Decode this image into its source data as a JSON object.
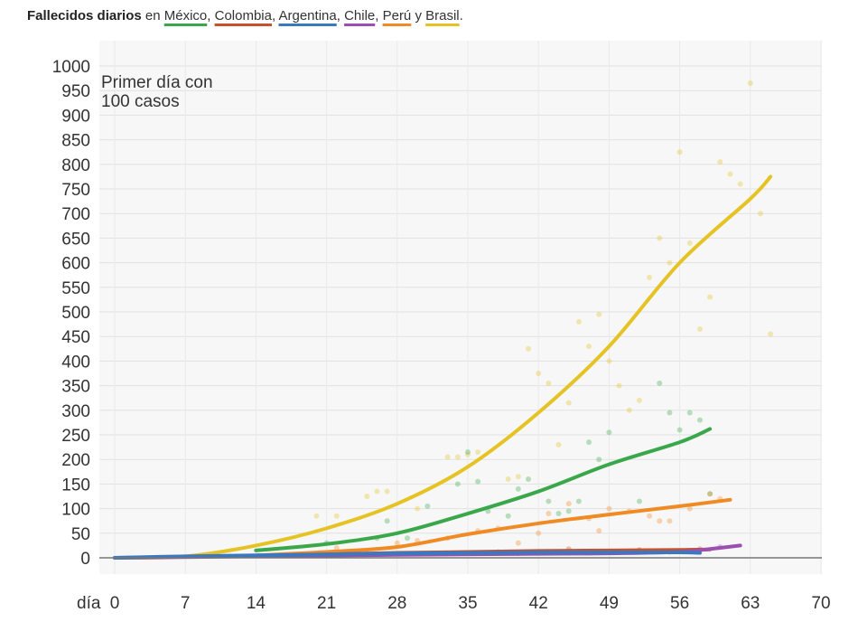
{
  "title": {
    "lead": "Fallecidos diarios",
    "connector": "en",
    "countries": [
      {
        "name": "México",
        "color": "#3aa84a"
      },
      {
        "name": "Colombia",
        "color": "#c8502a"
      },
      {
        "name": "Argentina",
        "color": "#3a78c0"
      },
      {
        "name": "Chile",
        "color": "#9b4fb0"
      },
      {
        "name": "Perú",
        "color": "#f08a24"
      },
      {
        "name": "Brasil",
        "color": "#e6c325"
      }
    ],
    "separators": [
      ", ",
      ", ",
      ", ",
      ", ",
      " y ",
      "."
    ]
  },
  "chart_data": {
    "type": "line",
    "annotation": "Primer día con 100 casos",
    "xlabel_prefix": "día",
    "xticks": [
      0,
      7,
      14,
      21,
      28,
      35,
      42,
      49,
      56,
      63,
      70
    ],
    "yticks": [
      0,
      50,
      100,
      150,
      200,
      250,
      300,
      350,
      400,
      450,
      500,
      550,
      600,
      650,
      700,
      750,
      800,
      850,
      900,
      950,
      1000
    ],
    "xlim": [
      0,
      70
    ],
    "ylim": [
      0,
      1000
    ],
    "grid": true,
    "series": [
      {
        "name": "Brasil",
        "color": "#e6c325",
        "trend": [
          [
            0,
            0
          ],
          [
            7,
            3
          ],
          [
            14,
            25
          ],
          [
            21,
            60
          ],
          [
            28,
            110
          ],
          [
            35,
            185
          ],
          [
            42,
            295
          ],
          [
            49,
            430
          ],
          [
            56,
            600
          ],
          [
            63,
            730
          ],
          [
            65,
            775
          ]
        ],
        "points": [
          [
            20,
            85
          ],
          [
            22,
            85
          ],
          [
            25,
            125
          ],
          [
            26,
            135
          ],
          [
            27,
            135
          ],
          [
            30,
            100
          ],
          [
            33,
            205
          ],
          [
            34,
            205
          ],
          [
            35,
            210
          ],
          [
            36,
            215
          ],
          [
            39,
            160
          ],
          [
            40,
            165
          ],
          [
            41,
            425
          ],
          [
            42,
            375
          ],
          [
            43,
            355
          ],
          [
            44,
            230
          ],
          [
            45,
            315
          ],
          [
            46,
            480
          ],
          [
            47,
            430
          ],
          [
            48,
            495
          ],
          [
            49,
            400
          ],
          [
            50,
            350
          ],
          [
            51,
            300
          ],
          [
            52,
            320
          ],
          [
            53,
            570
          ],
          [
            54,
            650
          ],
          [
            55,
            600
          ],
          [
            56,
            825
          ],
          [
            57,
            640
          ],
          [
            58,
            465
          ],
          [
            59,
            530
          ],
          [
            60,
            805
          ],
          [
            61,
            780
          ],
          [
            62,
            760
          ],
          [
            63,
            965
          ],
          [
            64,
            700
          ],
          [
            65,
            455
          ]
        ]
      },
      {
        "name": "México",
        "color": "#3aa84a",
        "trend": [
          [
            14,
            15
          ],
          [
            21,
            28
          ],
          [
            28,
            50
          ],
          [
            35,
            90
          ],
          [
            42,
            135
          ],
          [
            49,
            190
          ],
          [
            56,
            235
          ],
          [
            59,
            262
          ]
        ],
        "points": [
          [
            21,
            30
          ],
          [
            26,
            40
          ],
          [
            27,
            75
          ],
          [
            29,
            40
          ],
          [
            31,
            105
          ],
          [
            34,
            150
          ],
          [
            35,
            215
          ],
          [
            36,
            155
          ],
          [
            37,
            95
          ],
          [
            39,
            85
          ],
          [
            40,
            140
          ],
          [
            41,
            160
          ],
          [
            43,
            115
          ],
          [
            44,
            90
          ],
          [
            45,
            95
          ],
          [
            46,
            115
          ],
          [
            47,
            235
          ],
          [
            48,
            200
          ],
          [
            49,
            255
          ],
          [
            52,
            115
          ],
          [
            54,
            355
          ],
          [
            55,
            295
          ],
          [
            56,
            260
          ],
          [
            57,
            295
          ],
          [
            58,
            280
          ],
          [
            59,
            130
          ]
        ]
      },
      {
        "name": "Perú",
        "color": "#f08a24",
        "trend": [
          [
            14,
            5
          ],
          [
            21,
            12
          ],
          [
            28,
            22
          ],
          [
            35,
            48
          ],
          [
            42,
            70
          ],
          [
            49,
            88
          ],
          [
            56,
            105
          ],
          [
            61,
            118
          ]
        ],
        "points": [
          [
            22,
            20
          ],
          [
            28,
            30
          ],
          [
            30,
            35
          ],
          [
            33,
            40
          ],
          [
            36,
            55
          ],
          [
            38,
            60
          ],
          [
            40,
            30
          ],
          [
            42,
            50
          ],
          [
            43,
            90
          ],
          [
            45,
            110
          ],
          [
            47,
            80
          ],
          [
            48,
            55
          ],
          [
            49,
            100
          ],
          [
            51,
            95
          ],
          [
            53,
            85
          ],
          [
            54,
            75
          ],
          [
            55,
            75
          ],
          [
            57,
            100
          ],
          [
            59,
            130
          ],
          [
            60,
            120
          ]
        ]
      },
      {
        "name": "Colombia",
        "color": "#c8502a",
        "trend": [
          [
            7,
            2
          ],
          [
            14,
            4
          ],
          [
            21,
            7
          ],
          [
            28,
            10
          ],
          [
            35,
            12
          ],
          [
            42,
            14
          ],
          [
            49,
            15
          ],
          [
            56,
            16
          ],
          [
            59,
            17
          ]
        ],
        "points": [
          [
            30,
            8
          ],
          [
            38,
            12
          ],
          [
            45,
            18
          ],
          [
            52,
            16
          ],
          [
            58,
            18
          ]
        ]
      },
      {
        "name": "Chile",
        "color": "#9b4fb0",
        "trend": [
          [
            0,
            0
          ],
          [
            14,
            3
          ],
          [
            28,
            6
          ],
          [
            42,
            8
          ],
          [
            49,
            9
          ],
          [
            56,
            12
          ],
          [
            59,
            18
          ],
          [
            62,
            25
          ]
        ],
        "points": [
          [
            45,
            10
          ],
          [
            55,
            12
          ],
          [
            60,
            22
          ]
        ]
      },
      {
        "name": "Argentina",
        "color": "#3a78c0",
        "trend": [
          [
            0,
            0
          ],
          [
            7,
            3
          ],
          [
            14,
            5
          ],
          [
            21,
            7
          ],
          [
            28,
            9
          ],
          [
            35,
            10
          ],
          [
            42,
            11
          ],
          [
            49,
            11
          ],
          [
            56,
            11
          ],
          [
            58,
            10
          ]
        ],
        "points": [
          [
            25,
            8
          ],
          [
            40,
            9
          ],
          [
            50,
            11
          ]
        ]
      }
    ]
  }
}
